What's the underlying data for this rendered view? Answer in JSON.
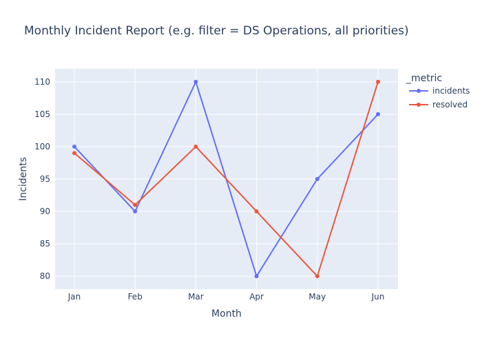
{
  "chart_data": {
    "type": "line",
    "title": "Monthly Incident Report (e.g. filter = DS Operations, all priorities)",
    "xlabel": "Month",
    "ylabel": "Incidents",
    "categories": [
      "Jan",
      "Feb",
      "Mar",
      "Apr",
      "May",
      "Jun"
    ],
    "ylim": [
      78,
      112
    ],
    "yticks": [
      80,
      85,
      90,
      95,
      100,
      105,
      110
    ],
    "grid": true,
    "legend": {
      "title": "_metric",
      "placement": "top-right"
    },
    "series": [
      {
        "name": "incidents",
        "color": "#636efa",
        "values": [
          100,
          90,
          110,
          80,
          95,
          105
        ]
      },
      {
        "name": "resolved",
        "color": "#EF553B",
        "values": [
          99,
          91,
          100,
          90,
          80,
          110
        ]
      }
    ]
  }
}
